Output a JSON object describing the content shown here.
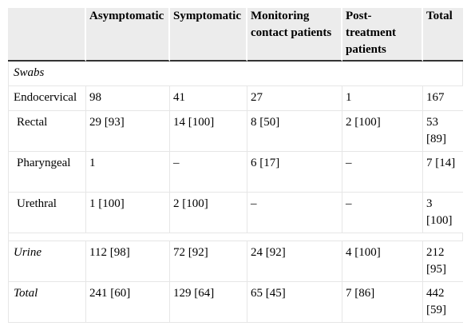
{
  "table": {
    "headers": [
      "",
      "Asymptomatic",
      "Symptomatic",
      "Monitoring contact patients",
      "Post-treatment patients",
      "Total"
    ],
    "section_label": "Swabs",
    "rows": [
      {
        "label": "Endocervical",
        "cells": [
          "98",
          "41",
          "27",
          "1",
          "167"
        ]
      },
      {
        "label": "Rectal",
        "cells": [
          "29 [93]",
          "14 [100]",
          "8 [50]",
          "2 [100]",
          "53 [89]"
        ]
      },
      {
        "label": "Pharyngeal",
        "cells": [
          "1",
          "–",
          "6 [17]",
          "–",
          "7 [14]"
        ]
      },
      {
        "label": "Urethral",
        "cells": [
          "1 [100]",
          "2 [100]",
          "–",
          "–",
          "3 [100]"
        ]
      },
      {
        "label": "Urine",
        "cells": [
          "112 [98]",
          "72 [92]",
          "24 [92]",
          "4 [100]",
          "212 [95]"
        ]
      },
      {
        "label": "Total",
        "cells": [
          "241 [60]",
          "129 [64]",
          "65 [45]",
          "7 [86]",
          "442 [59]"
        ]
      }
    ]
  }
}
